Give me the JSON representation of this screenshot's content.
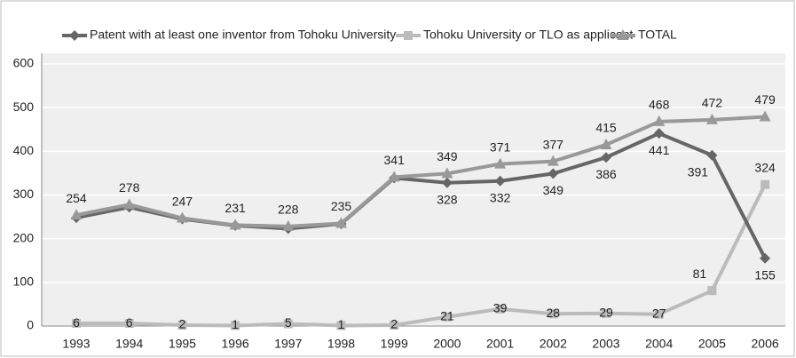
{
  "chart_data": {
    "type": "line",
    "categories": [
      "1993",
      "1994",
      "1995",
      "1996",
      "1997",
      "1998",
      "1999",
      "2000",
      "2001",
      "2002",
      "2003",
      "2004",
      "2005",
      "2006"
    ],
    "series": [
      {
        "name": "Patent with at least one inventor from Tohoku University",
        "color": "#666666",
        "marker": "diamond",
        "values": [
          248,
          272,
          245,
          230,
          223,
          234,
          339,
          328,
          332,
          349,
          386,
          441,
          391,
          155
        ],
        "value_labels": [
          null,
          null,
          null,
          null,
          null,
          null,
          null,
          "328",
          "332",
          "349",
          "386",
          "441",
          "391",
          "155"
        ]
      },
      {
        "name": "Tohoku University or TLO as applicant",
        "color": "#bbbbbb",
        "marker": "square",
        "values": [
          6,
          6,
          2,
          1,
          5,
          1,
          2,
          21,
          39,
          28,
          29,
          27,
          81,
          324
        ]
      },
      {
        "name": "TOTAL",
        "color": "#999999",
        "marker": "triangle",
        "values": [
          254,
          278,
          247,
          231,
          228,
          235,
          341,
          349,
          371,
          377,
          415,
          468,
          472,
          479
        ]
      }
    ],
    "ylim": [
      0,
      600
    ],
    "yticks": [
      0,
      100,
      200,
      300,
      400,
      500,
      600
    ],
    "grid": true
  }
}
